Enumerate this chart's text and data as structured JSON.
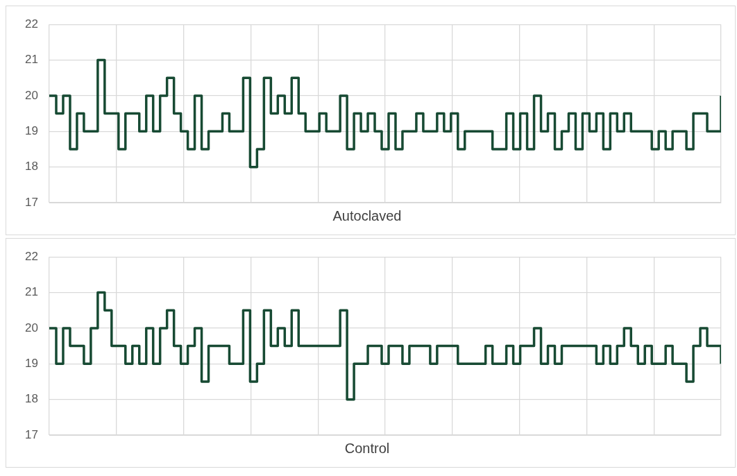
{
  "chart_data": [
    {
      "type": "step",
      "title": "Autoclaved",
      "categories": [
        null,
        null,
        null,
        null,
        null,
        null,
        null,
        null,
        null,
        null,
        null,
        null,
        null,
        null,
        null,
        null,
        null,
        null,
        null,
        null,
        null,
        null,
        null,
        null,
        null,
        null,
        null,
        null,
        null,
        null,
        null,
        null,
        null,
        null,
        null,
        null,
        null,
        null,
        null,
        null,
        null,
        null,
        null,
        null,
        null,
        null,
        null,
        null,
        null,
        null,
        null,
        null,
        null,
        null,
        null,
        null,
        null,
        null,
        null,
        null,
        null,
        null,
        null,
        null,
        null,
        null,
        null,
        null,
        null,
        null,
        null,
        null,
        null,
        null,
        null,
        null,
        null,
        null,
        null,
        null,
        null,
        null,
        null,
        null,
        null,
        null,
        null,
        null,
        null,
        null,
        null,
        null,
        null,
        null,
        null,
        null,
        null,
        null
      ],
      "series": [
        {
          "color": "#174a33",
          "values": [
            20,
            19.5,
            20,
            18.5,
            19.5,
            19,
            19,
            21,
            19.5,
            19.5,
            18.5,
            19.5,
            19.5,
            19,
            20,
            19,
            20,
            20.5,
            19.5,
            19,
            18.5,
            20,
            18.5,
            19,
            19,
            19.5,
            19,
            19,
            20.5,
            18,
            18.5,
            20.5,
            19.5,
            20,
            19.5,
            20.5,
            19.5,
            19,
            19,
            19.5,
            19,
            19,
            20,
            18.5,
            19.5,
            19,
            19.5,
            19,
            18.5,
            19.5,
            18.5,
            19,
            19,
            19.5,
            19,
            19,
            19.5,
            19,
            19.5,
            18.5,
            19,
            19,
            19,
            19,
            18.5,
            18.5,
            19.5,
            18.5,
            19.5,
            18.5,
            20,
            19,
            19.5,
            18.5,
            19,
            19.5,
            18.5,
            19.5,
            19,
            19.5,
            18.5,
            19.5,
            19,
            19.5,
            19,
            19,
            19,
            18.5,
            19,
            18.5,
            19,
            19,
            18.5,
            19.5,
            19.5,
            19,
            19,
            20
          ]
        }
      ],
      "ylim": [
        17,
        22
      ],
      "yticks": [
        17,
        18,
        19,
        20,
        21,
        22
      ],
      "grid": true,
      "tick_labels": "y",
      "legend": false
    },
    {
      "type": "step",
      "title": "Control",
      "categories": [
        null,
        null,
        null,
        null,
        null,
        null,
        null,
        null,
        null,
        null,
        null,
        null,
        null,
        null,
        null,
        null,
        null,
        null,
        null,
        null,
        null,
        null,
        null,
        null,
        null,
        null,
        null,
        null,
        null,
        null,
        null,
        null,
        null,
        null,
        null,
        null,
        null,
        null,
        null,
        null,
        null,
        null,
        null,
        null,
        null,
        null,
        null,
        null,
        null,
        null,
        null,
        null,
        null,
        null,
        null,
        null,
        null,
        null,
        null,
        null,
        null,
        null,
        null,
        null,
        null,
        null,
        null,
        null,
        null,
        null,
        null,
        null,
        null,
        null,
        null,
        null,
        null,
        null,
        null,
        null,
        null,
        null,
        null,
        null,
        null,
        null,
        null,
        null,
        null,
        null,
        null,
        null,
        null,
        null,
        null,
        null,
        null,
        null
      ],
      "series": [
        {
          "color": "#174a33",
          "values": [
            20,
            19,
            20,
            19.5,
            19.5,
            19,
            20,
            21,
            20.5,
            19.5,
            19.5,
            19,
            19.5,
            19,
            20,
            19,
            20,
            20.5,
            19.5,
            19,
            19.5,
            20,
            18.5,
            19.5,
            19.5,
            19.5,
            19,
            19,
            20.5,
            18.5,
            19,
            20.5,
            19.5,
            20,
            19.5,
            20.5,
            19.5,
            19.5,
            19.5,
            19.5,
            19.5,
            19.5,
            20.5,
            18,
            19,
            19,
            19.5,
            19.5,
            19,
            19.5,
            19.5,
            19,
            19.5,
            19.5,
            19.5,
            19,
            19.5,
            19.5,
            19.5,
            19,
            19,
            19,
            19,
            19.5,
            19,
            19,
            19.5,
            19,
            19.5,
            19.5,
            20,
            19,
            19.5,
            19,
            19.5,
            19.5,
            19.5,
            19.5,
            19.5,
            19,
            19.5,
            19,
            19.5,
            20,
            19.5,
            19,
            19.5,
            19,
            19,
            19.5,
            19,
            19,
            18.5,
            19.5,
            20,
            19.5,
            19.5,
            19
          ]
        }
      ],
      "ylim": [
        17,
        22
      ],
      "yticks": [
        17,
        18,
        19,
        20,
        21,
        22
      ],
      "grid": true,
      "tick_labels": "y",
      "legend": false
    }
  ]
}
